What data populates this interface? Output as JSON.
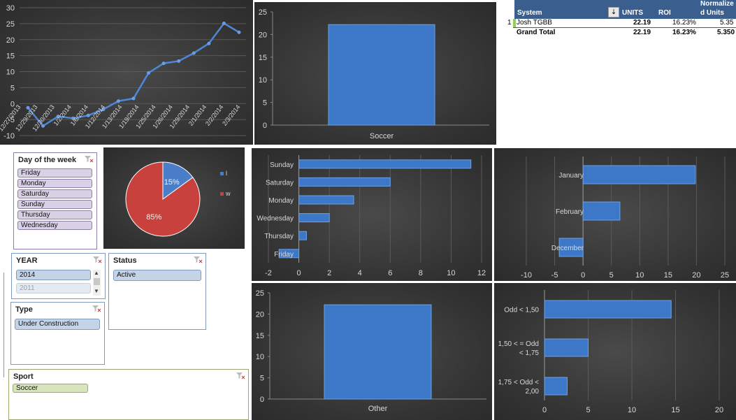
{
  "line_chart": {
    "type": "line",
    "y_ticks": [
      "30",
      "25",
      "20",
      "15",
      "10",
      "5",
      "0",
      "-5",
      "-10"
    ],
    "ylim": [
      -10,
      30
    ],
    "x_labels": [
      "12/27/2013",
      "12/29/2013",
      "12/30/2013",
      "1/2/2014",
      "1/6/2014",
      "1/12/2014",
      "1/13/2014",
      "1/19/2014",
      "1/25/2014",
      "1/26/2014",
      "1/29/2014",
      "2/1/2014",
      "2/2/2014",
      "2/3/2014"
    ],
    "values": [
      -1.3,
      -7.0,
      -4.0,
      -4.6,
      -3.7,
      -1.8,
      0.8,
      1.6,
      9.6,
      12.6,
      13.3,
      15.8,
      18.8,
      25.1,
      22.3
    ]
  },
  "chart_data": [
    {
      "type": "line",
      "categories": [
        "",
        "12/27/2013",
        "12/29/2013",
        "12/30/2013",
        "1/2/2014",
        "1/6/2014",
        "1/12/2014",
        "1/13/2014",
        "1/19/2014",
        "1/25/2014",
        "1/26/2014",
        "1/29/2014",
        "2/1/2014",
        "2/2/2014",
        "2/3/2014"
      ],
      "values": [
        -1.3,
        -7.0,
        -4.0,
        -4.6,
        -3.7,
        -1.8,
        0.8,
        1.6,
        9.6,
        12.6,
        13.3,
        15.8,
        18.8,
        25.1,
        22.3
      ],
      "ylim": [
        -10,
        30
      ],
      "grid": true
    },
    {
      "type": "bar",
      "categories": [
        "Soccer"
      ],
      "values": [
        22.19
      ],
      "ylim": [
        0,
        25
      ],
      "grid": false
    },
    {
      "type": "pie",
      "categories": [
        "l",
        "w"
      ],
      "values": [
        15,
        85
      ],
      "labels": [
        "15%",
        "85%"
      ],
      "legend": "right"
    },
    {
      "type": "bar",
      "orientation": "horizontal",
      "categories": [
        "Sunday",
        "Saturday",
        "Monday",
        "Wednesday",
        "Thursday",
        "Friday"
      ],
      "values": [
        11.3,
        6.0,
        3.6,
        2.0,
        0.5,
        -1.3
      ],
      "xlim": [
        -2,
        12
      ],
      "grid": true
    },
    {
      "type": "bar",
      "orientation": "horizontal",
      "categories": [
        "January",
        "February",
        "December"
      ],
      "values": [
        19.8,
        6.5,
        -4.2
      ],
      "xlim": [
        -10,
        25
      ],
      "grid": true
    },
    {
      "type": "bar",
      "categories": [
        "Other"
      ],
      "values": [
        22.19
      ],
      "ylim": [
        0,
        25
      ],
      "grid": false
    },
    {
      "type": "bar",
      "orientation": "horizontal",
      "categories": [
        "Odd < 1,50",
        "1,50 < = Odd < 1,75",
        "1,75 < Odd < 2,00"
      ],
      "values": [
        14.5,
        5.0,
        2.6
      ],
      "xlim": [
        0,
        20
      ],
      "grid": true
    }
  ],
  "soccer_chart": {
    "category": "Soccer",
    "value": 22.19,
    "y_ticks": [
      "25",
      "20",
      "15",
      "10",
      "5",
      "0"
    ]
  },
  "other_chart": {
    "category": "Other",
    "value": 22.19,
    "y_ticks": [
      "25",
      "20",
      "15",
      "10",
      "5",
      "0"
    ]
  },
  "pie_chart": {
    "legend": [
      "l",
      "w"
    ],
    "labels": [
      "15%",
      "85%"
    ],
    "colors": [
      "#4a7ec9",
      "#c8413c"
    ]
  },
  "day_chart": {
    "categories": [
      "Sunday",
      "Saturday",
      "Monday",
      "Wednesday",
      "Thursday",
      "Friday"
    ],
    "values": [
      11.3,
      6.0,
      3.6,
      2.0,
      0.5,
      -1.3
    ],
    "x_ticks": [
      "-2",
      "0",
      "2",
      "4",
      "6",
      "8",
      "10",
      "12"
    ]
  },
  "month_chart": {
    "categories": [
      "January",
      "February",
      "December"
    ],
    "values": [
      19.8,
      6.5,
      -4.2
    ],
    "x_ticks": [
      "-10",
      "-5",
      "0",
      "5",
      "10",
      "15",
      "20",
      "25"
    ]
  },
  "odds_chart": {
    "categories": [
      [
        "Odd < 1,50"
      ],
      [
        "1,50 < = Odd",
        "< 1,75"
      ],
      [
        "1,75 < Odd <",
        "2,00"
      ]
    ],
    "values": [
      14.5,
      5.0,
      2.6
    ],
    "x_ticks": [
      "0",
      "5",
      "10",
      "15",
      "20"
    ]
  },
  "pivot": {
    "headers": {
      "system": "System",
      "units": "UNITS",
      "roi": "ROI",
      "normalized_1": "Normalize",
      "normalized_2": "d Units"
    },
    "row": {
      "index": "1",
      "system": "Josh TGBB",
      "units": "22.19",
      "roi": "16.23%",
      "normalized": "5.35"
    },
    "total": {
      "label": "Grand Total",
      "units": "22.19",
      "roi": "16.23%",
      "normalized": "5.350"
    }
  },
  "slicers": {
    "day": {
      "title": "Day of the week",
      "items": [
        "Friday",
        "Monday",
        "Saturday",
        "Sunday",
        "Thursday",
        "Wednesday"
      ]
    },
    "year": {
      "title": "YEAR",
      "items": [
        "2014",
        "2011"
      ]
    },
    "status": {
      "title": "Status",
      "items": [
        "Active"
      ]
    },
    "type": {
      "title": "Type",
      "items": [
        "Under Construction"
      ]
    },
    "sport": {
      "title": "Sport",
      "items": [
        "Soccer"
      ]
    }
  },
  "colors": {
    "bar": "#3d77c7",
    "bar_edge": "#6fa1e0",
    "grid": "#5a5a5a",
    "axis_text": "#d8d8d8",
    "accent_green": "#92d050"
  }
}
